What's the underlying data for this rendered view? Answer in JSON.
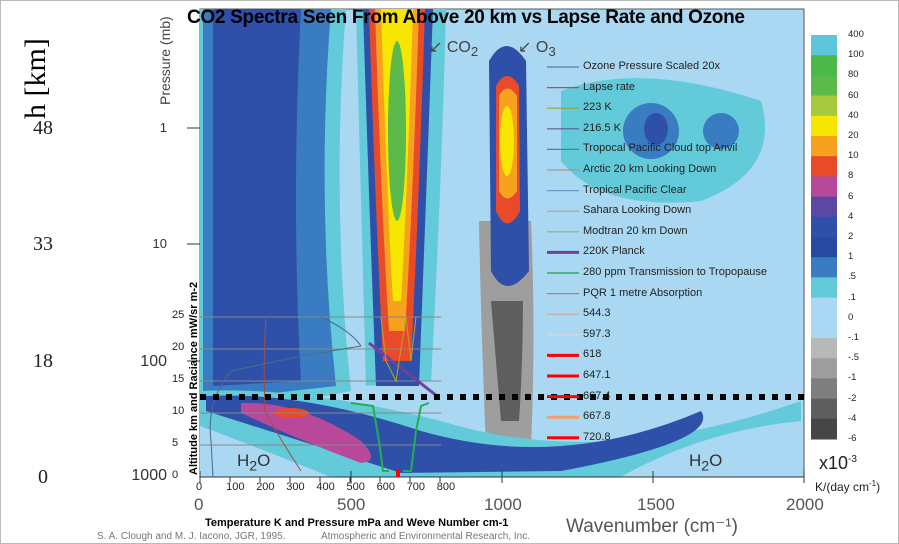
{
  "chart_data": {
    "type": "heatmap",
    "title": "CO2 Spectra Seen From Above 20 km vs Lapse Rate and Ozone",
    "xlabel": "Wavenumber (cm⁻¹)",
    "xticks": [
      "0",
      "500",
      "1000",
      "1500",
      "2000"
    ],
    "xlim": [
      0,
      2000
    ],
    "ylabel": "Pressure (mb)",
    "yticks": [
      "1",
      "10",
      "100",
      "1000"
    ],
    "altitude_label": "h [km]",
    "altitude_ticks": [
      "48",
      "33",
      "18",
      "0"
    ],
    "band_labels": [
      "CO",
      "2",
      "O",
      "3",
      "H",
      "2",
      "O",
      "H",
      "2",
      "O"
    ],
    "colorbar": {
      "levels": [
        "400",
        "100",
        "80",
        "60",
        "40",
        "20",
        "10",
        "8",
        "6",
        "4",
        "2",
        "1",
        ".5",
        ".1",
        "0",
        "-.1",
        "-.5",
        "-1",
        "-2",
        "-4",
        "-6"
      ],
      "colors": [
        "#5ec6dc",
        "#4cb84a",
        "#5cba4a",
        "#a6c93e",
        "#f6e600",
        "#f6a21e",
        "#e84a2a",
        "#b8489a",
        "#5a48a2",
        "#2f50a8",
        "#2a4aa2",
        "#3a7cc2",
        "#62cad8",
        "#aad8f2",
        "#aad8f2",
        "#b8b8b8",
        "#9e9e9e",
        "#7e7e7e",
        "#5e5e5e",
        "#454545",
        "#2e2e2e"
      ],
      "multiplier": "x10",
      "multiplier_exp": "-3",
      "unit": "K/(day cm",
      "unit_sup": "-1",
      "unit_end": ")"
    },
    "overlay": {
      "xlabel": "Temperature K and Pressure mPa and Weve Number cm-1",
      "ylabel": "Altitude km and Raciance mW/sr m-2",
      "xticks": [
        "0",
        "100",
        "200",
        "300",
        "400",
        "500",
        "600",
        "700",
        "800"
      ],
      "yticks": [
        "0",
        "5",
        "10",
        "15",
        "20",
        "25"
      ],
      "xlim": [
        0,
        800
      ],
      "ylim": [
        0,
        25
      ],
      "tropopause_km": 12.5,
      "legend": [
        {
          "label": "Ozone Pressure Scaled 20x",
          "color": "#5a7a9a"
        },
        {
          "label": "Lapse rate",
          "color": "#b05050"
        },
        {
          "label": "223 K",
          "color": "#9aa030"
        },
        {
          "label": "216.5 K",
          "color": "#5a5a9a"
        },
        {
          "label": "Tropocal Pacific Cloud top Anvil",
          "color": "#3a8a9a"
        },
        {
          "label": "Arctic 20 km Looking Down",
          "color": "#a09a90"
        },
        {
          "label": "Tropical Pacific Clear",
          "color": "#6a9ac8"
        },
        {
          "label": "Sahara Looking Down",
          "color": "#b0a0a0"
        },
        {
          "label": "Modtran 20 km Down",
          "color": "#9ab060"
        },
        {
          "label": "220K Planck",
          "color": "#7040a0"
        },
        {
          "label": "280 ppm Transmission to Tropopause",
          "color": "#20a050"
        },
        {
          "label": "PQR 1 metre Absorption",
          "color": "#c07090"
        },
        {
          "label": "544.3",
          "color": "#d0a0a0"
        },
        {
          "label": "597.3",
          "color": "#d8d8d8"
        },
        {
          "label": "618",
          "color": "#ff0000"
        },
        {
          "label": "647.1",
          "color": "#ff0000"
        },
        {
          "label": "667.4",
          "color": "#ff0000"
        },
        {
          "label": "667.8",
          "color": "#f0a070"
        },
        {
          "label": "720.8",
          "color": "#ff0000"
        }
      ]
    }
  },
  "credits": [
    "S. A. Clough and M. J. Iacono, JGR, 1995.",
    "Atmospheric and Environmental Research, Inc."
  ]
}
